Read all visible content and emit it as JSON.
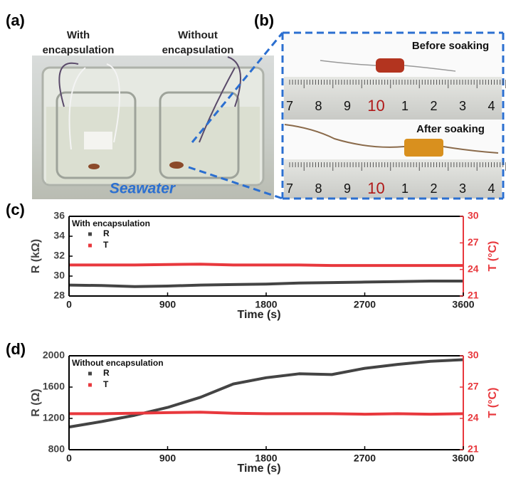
{
  "photo_a": {
    "label": "(a)",
    "caption_left": [
      "With",
      "encapsulation"
    ],
    "caption_right": [
      "Without",
      "encapsulation"
    ],
    "liquid": "Seawater"
  },
  "photo_b": {
    "label": "(b)",
    "top": "Before soaking",
    "bottom": "After soaking",
    "ruler_labels": [
      "7",
      "8",
      "9",
      "10",
      "1",
      "2",
      "3",
      "4"
    ]
  },
  "chart_data": [
    {
      "type": "line",
      "panel": "(c)",
      "legend_title": "With encapsulation",
      "x": [
        0,
        300,
        600,
        900,
        1200,
        1500,
        1800,
        2100,
        2400,
        2700,
        3000,
        3300,
        3600
      ],
      "series": [
        {
          "name": "R",
          "color": "#444444",
          "axis": "y",
          "values": [
            29.1,
            29.05,
            28.95,
            29.0,
            29.1,
            29.15,
            29.2,
            29.3,
            29.35,
            29.4,
            29.45,
            29.5,
            29.5
          ]
        },
        {
          "name": "T",
          "color": "#e8383d",
          "axis": "y2",
          "values": [
            24.5,
            24.5,
            24.5,
            24.55,
            24.6,
            24.5,
            24.5,
            24.5,
            24.45,
            24.45,
            24.45,
            24.45,
            24.45
          ]
        }
      ],
      "xlabel": "Time (s)",
      "ylabel": "R (kΩ)",
      "y2label": "T (°C)",
      "xlim": [
        0,
        3600
      ],
      "xticks": [
        0,
        900,
        1800,
        2700,
        3600
      ],
      "ylim": [
        28,
        36
      ],
      "yticks": [
        28,
        30,
        32,
        34,
        36
      ],
      "y2lim": [
        21,
        30
      ],
      "y2ticks": [
        21,
        24,
        27,
        30
      ]
    },
    {
      "type": "line",
      "panel": "(d)",
      "legend_title": "Without encapsulation",
      "x": [
        0,
        300,
        600,
        900,
        1200,
        1500,
        1800,
        2100,
        2400,
        2700,
        3000,
        3300,
        3600
      ],
      "series": [
        {
          "name": "R",
          "color": "#444444",
          "axis": "y",
          "values": [
            1090,
            1160,
            1240,
            1340,
            1470,
            1640,
            1720,
            1770,
            1760,
            1840,
            1890,
            1930,
            1950
          ]
        },
        {
          "name": "T",
          "color": "#e8383d",
          "axis": "y2",
          "values": [
            24.45,
            24.45,
            24.5,
            24.55,
            24.6,
            24.5,
            24.45,
            24.45,
            24.45,
            24.4,
            24.45,
            24.4,
            24.45
          ]
        }
      ],
      "xlabel": "Time (s)",
      "ylabel": "R (Ω)",
      "y2label": "T (°C)",
      "xlim": [
        0,
        3600
      ],
      "xticks": [
        0,
        900,
        1800,
        2700,
        3600
      ],
      "ylim": [
        800,
        2000
      ],
      "yticks": [
        800,
        1200,
        1600,
        2000
      ],
      "y2lim": [
        21,
        30
      ],
      "y2ticks": [
        21,
        24,
        27,
        30
      ]
    }
  ]
}
